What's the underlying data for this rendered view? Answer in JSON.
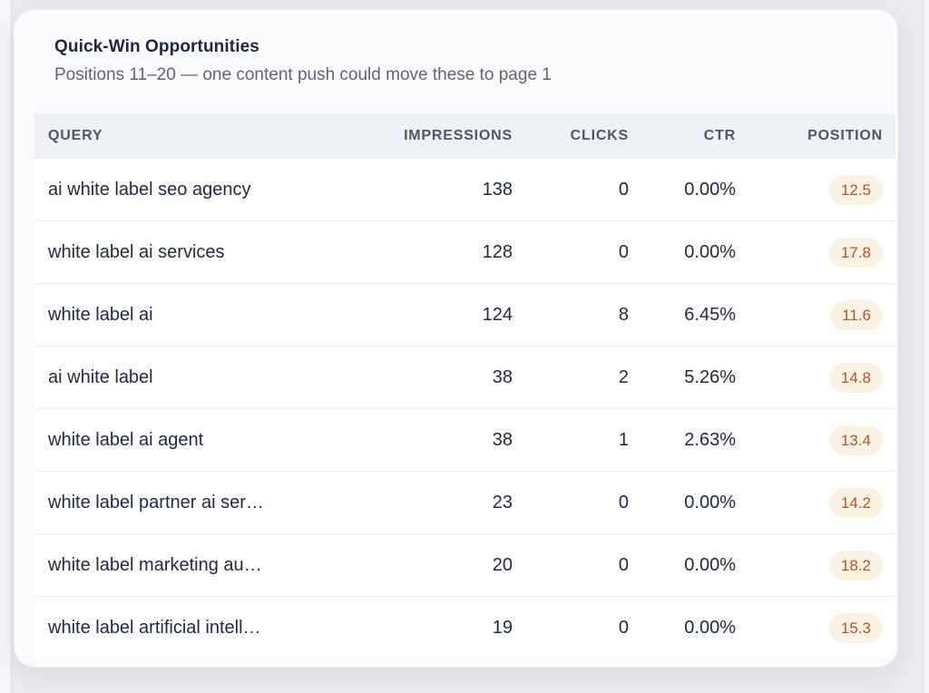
{
  "card": {
    "title": "Quick-Win Opportunities",
    "subtitle": "Positions 11–20 — one content push could move these to page 1"
  },
  "table": {
    "columns": [
      "QUERY",
      "IMPRESSIONS",
      "CLICKS",
      "CTR",
      "POSITION"
    ],
    "rows": [
      {
        "query": "ai white label seo agency",
        "impressions": "138",
        "clicks": "0",
        "ctr": "0.00%",
        "position": "12.5"
      },
      {
        "query": "white label ai services",
        "impressions": "128",
        "clicks": "0",
        "ctr": "0.00%",
        "position": "17.8"
      },
      {
        "query": "white label ai",
        "impressions": "124",
        "clicks": "8",
        "ctr": "6.45%",
        "position": "11.6"
      },
      {
        "query": "ai white label",
        "impressions": "38",
        "clicks": "2",
        "ctr": "5.26%",
        "position": "14.8"
      },
      {
        "query": "white label ai agent",
        "impressions": "38",
        "clicks": "1",
        "ctr": "2.63%",
        "position": "13.4"
      },
      {
        "query": "white label partner ai ser…",
        "impressions": "23",
        "clicks": "0",
        "ctr": "0.00%",
        "position": "14.2"
      },
      {
        "query": "white label marketing au…",
        "impressions": "20",
        "clicks": "0",
        "ctr": "0.00%",
        "position": "18.2"
      },
      {
        "query": "white label artificial intell…",
        "impressions": "19",
        "clicks": "0",
        "ctr": "0.00%",
        "position": "15.3"
      }
    ]
  },
  "colors": {
    "page_bg": "#e9ebef",
    "card_bg": "#fbfbfd",
    "title": "#1d2742",
    "subtitle": "#5d6679",
    "header_bg": "#eef1f5",
    "header_text": "#4c566c",
    "row_bg": "#ffffff",
    "row_divider": "#ededf1",
    "cell_text": "#202b42",
    "badge_bg": "#fbf3e1",
    "badge_text": "#b5532f"
  }
}
